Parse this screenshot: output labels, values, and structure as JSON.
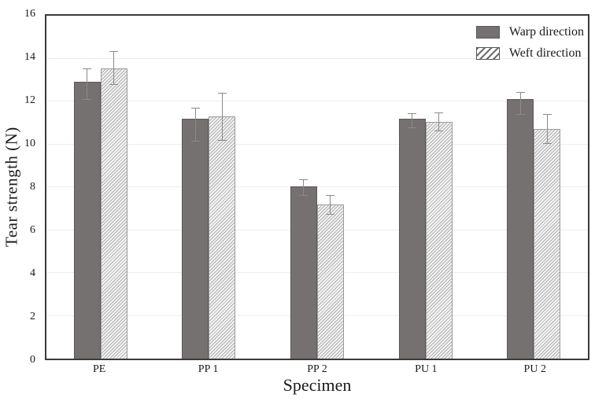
{
  "chart_data": {
    "type": "bar",
    "title": "",
    "xlabel": "Specimen",
    "ylabel": "Tear strength (N)",
    "ylim": [
      0,
      16
    ],
    "ytick_step": 2,
    "yticks": [
      0,
      2,
      4,
      6,
      8,
      10,
      12,
      14,
      16
    ],
    "grid": true,
    "legend_position": "top-right",
    "categories": [
      "PE",
      "PP 1",
      "PP 2",
      "PU 1",
      "PU 2"
    ],
    "series": [
      {
        "name": "Warp direction",
        "style": "solid",
        "values": [
          12.9,
          11.2,
          8.05,
          11.2,
          12.1
        ],
        "err_up": [
          0.65,
          0.5,
          0.3,
          0.25,
          0.35
        ],
        "err_down": [
          0.8,
          1.05,
          0.4,
          0.4,
          0.7
        ]
      },
      {
        "name": "Weft direction",
        "style": "hatch",
        "values": [
          13.55,
          11.3,
          7.2,
          11.05,
          10.7
        ],
        "err_up": [
          0.8,
          1.1,
          0.45,
          0.45,
          0.7
        ],
        "err_down": [
          0.75,
          1.1,
          0.45,
          0.4,
          0.65
        ]
      }
    ],
    "colors": {
      "warp_fill": "#767171",
      "warp_border": "#5c5757",
      "weft_hatch_line": "#8c8c8c",
      "weft_background": "#f4f3f3",
      "weft_border": "#9b9b9b",
      "error_bar": "#8a8a8a",
      "axis_frame": "#3a3a3a",
      "gridline": "#ededed",
      "text": "#1a1a1a"
    }
  }
}
